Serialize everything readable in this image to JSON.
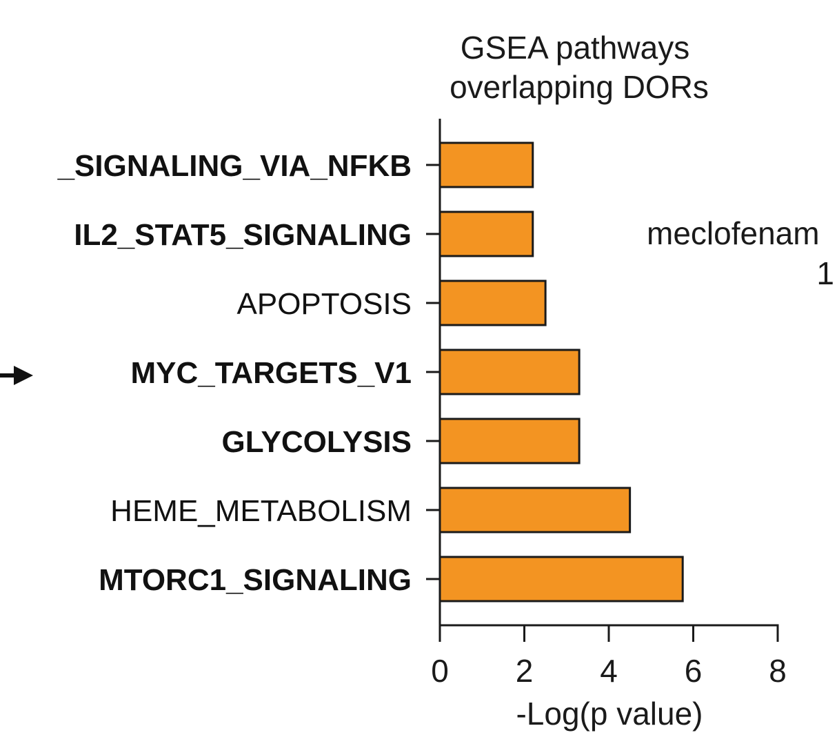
{
  "chart_data": {
    "type": "bar",
    "orientation": "horizontal",
    "title_lines": [
      "GSEA pathways",
      "overlapping DORs"
    ],
    "xlabel": "-Log(p value)",
    "ylabel": "",
    "xlim": [
      0,
      8
    ],
    "xticks": [
      0,
      2,
      4,
      6,
      8
    ],
    "categories": [
      "_SIGNALING_VIA_NFKB",
      "IL2_STAT5_SIGNALING",
      "APOPTOSIS",
      "MYC_TARGETS_V1",
      "GLYCOLYSIS",
      "HEME_METABOLISM",
      "MTORC1_SIGNALING"
    ],
    "bold_categories": [
      true,
      true,
      false,
      true,
      true,
      false,
      true
    ],
    "values": [
      2.2,
      2.2,
      2.5,
      3.3,
      3.3,
      4.5,
      5.75
    ],
    "highlighted_category": "MYC_TARGETS_V1",
    "bar_color": "#f39422",
    "grid": false,
    "legend": "none",
    "side_text_lines": [
      "meclofenam",
      "1"
    ]
  }
}
